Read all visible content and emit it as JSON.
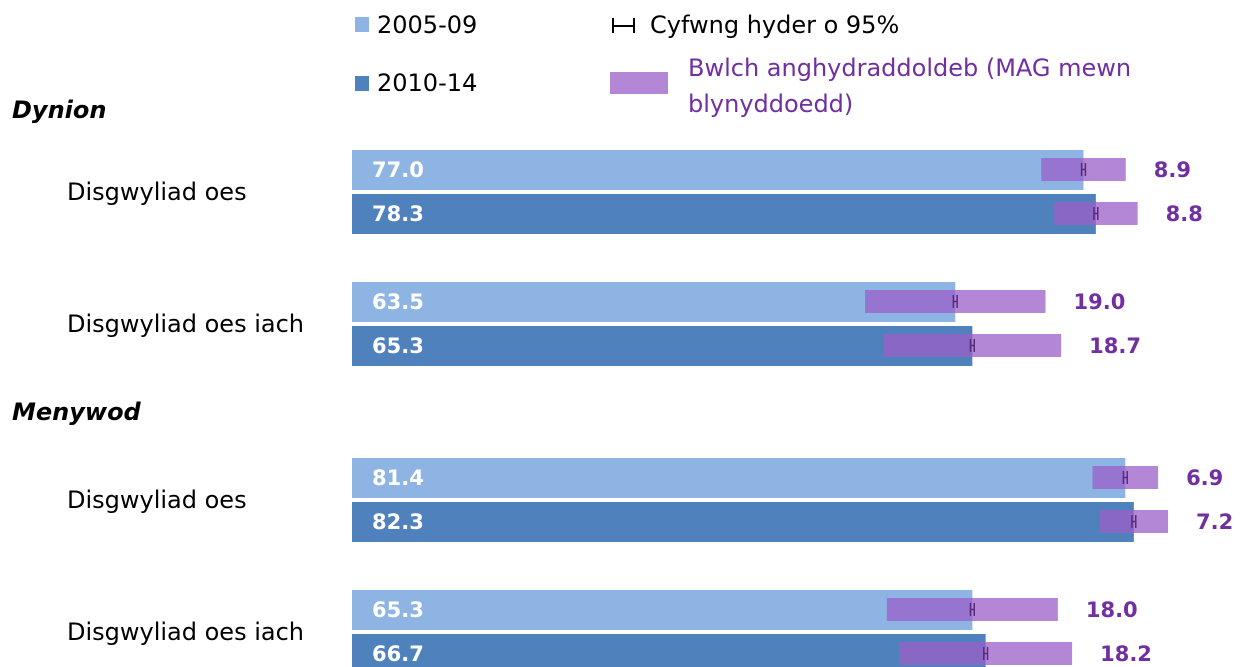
{
  "chart_data": {
    "type": "bar",
    "orientation": "horizontal",
    "groups": [
      {
        "name": "Dynion",
        "categories": [
          "Disgwyliad oes",
          "Disgwyliad oes iach"
        ]
      },
      {
        "name": "Menywod",
        "categories": [
          "Disgwyliad oes",
          "Disgwyliad oes iach"
        ]
      }
    ],
    "xlim": [
      0,
      90
    ],
    "series": [
      {
        "name": "2005-09",
        "color": "#8db4e2",
        "values": [
          77.0,
          63.5,
          81.4,
          65.3
        ],
        "value_labels": [
          "77.0",
          "63.5",
          "81.4",
          "65.3"
        ],
        "gap_values": [
          8.9,
          19.0,
          6.9,
          18.0
        ],
        "gap_value_labels": [
          "8.9",
          "19.0",
          "6.9",
          "18.0"
        ],
        "ci_errors": [
          0.2,
          0.2,
          0.2,
          0.2
        ]
      },
      {
        "name": "2010-14",
        "color": "#4f81bd",
        "values": [
          78.3,
          65.3,
          82.3,
          66.7
        ],
        "value_labels": [
          "78.3",
          "65.3",
          "82.3",
          "66.7"
        ],
        "gap_values": [
          8.8,
          18.7,
          7.2,
          18.2
        ],
        "gap_value_labels": [
          "8.8",
          "18.7",
          "7.2",
          "18.2"
        ],
        "ci_errors": [
          0.2,
          0.2,
          0.2,
          0.2
        ]
      }
    ],
    "gap_name": "Bwlch anghydraddoldeb (MAG mewn blynyddoedd)",
    "gap_color": "#9b5fc8",
    "gap_label_color": "#7030a0",
    "ci_name": "Cyfwng hyder o 95%",
    "ci_color": "#5a2a7a"
  }
}
